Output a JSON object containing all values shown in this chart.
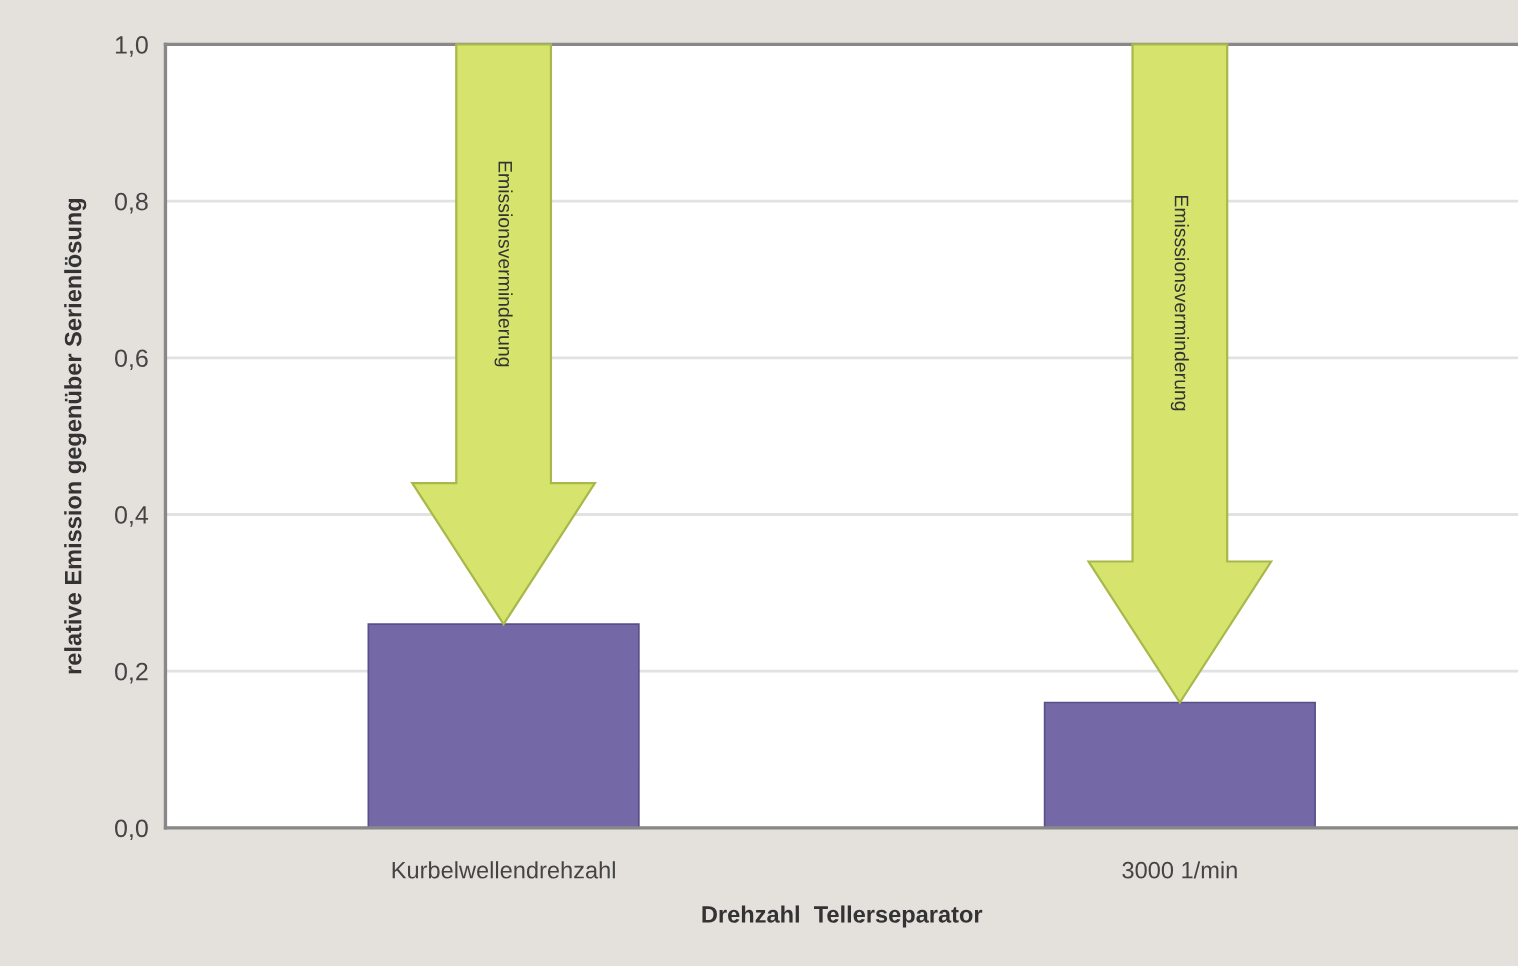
{
  "chart_data": {
    "type": "bar",
    "categories": [
      "Kurbelwellendrehzahl",
      "3000 1/min"
    ],
    "values": [
      0.26,
      0.16
    ],
    "color": "#7469a6",
    "xlabel": "Drehzahl  Tellerseparator",
    "ylabel": "relative Emission gegenüber Serienlösung",
    "ylim": [
      0,
      1
    ],
    "yticks": [
      {
        "value": 0,
        "label": "0,0"
      },
      {
        "value": 0.2,
        "label": "0,2"
      },
      {
        "value": 0.4,
        "label": "0,4"
      },
      {
        "value": 0.6,
        "label": "0,6"
      },
      {
        "value": 0.8,
        "label": "0,8"
      },
      {
        "value": 1,
        "label": "1,0"
      }
    ],
    "grid": "y",
    "annotations": [
      "Emissionsverminderung",
      "Emisssionsverminderung"
    ]
  }
}
